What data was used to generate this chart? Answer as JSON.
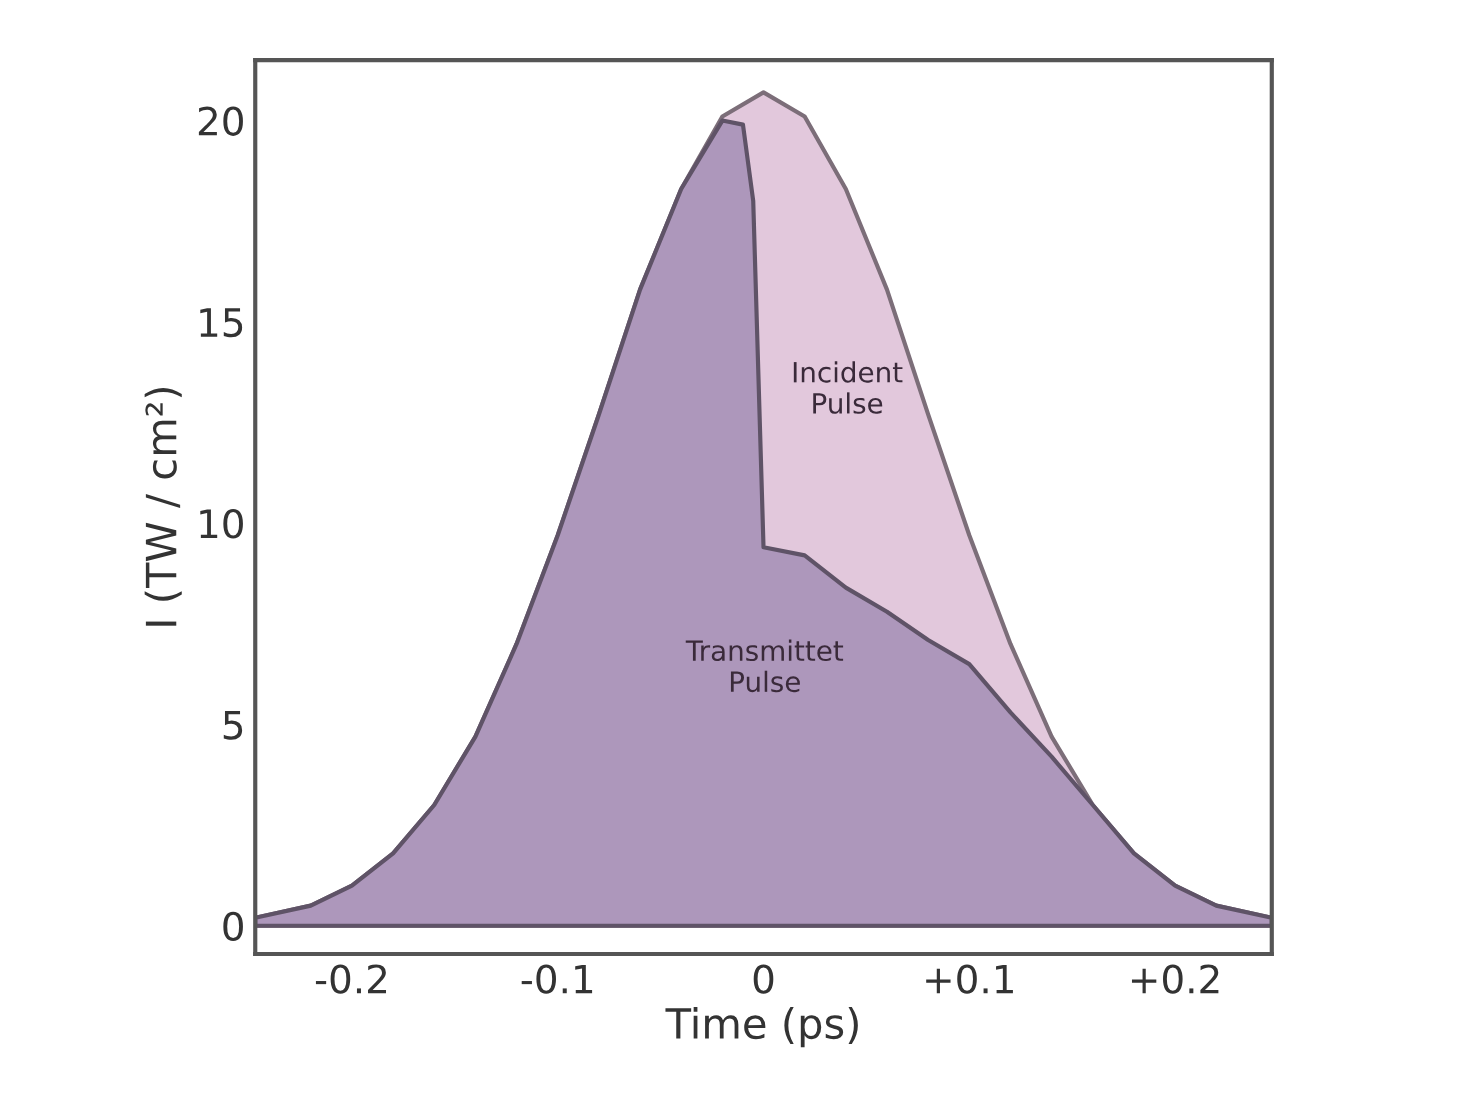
{
  "chart_data": {
    "type": "area",
    "xlabel": "Time (ps)",
    "ylabel": "I (TW / cm²)",
    "xlim": [
      -0.247,
      0.247
    ],
    "ylim": [
      -0.7,
      21.5
    ],
    "xticks": [
      {
        "value": -0.2,
        "label": "-0.2"
      },
      {
        "value": -0.1,
        "label": "-0.1"
      },
      {
        "value": 0,
        "label": "0"
      },
      {
        "value": 0.1,
        "label": "+0.1"
      },
      {
        "value": 0.2,
        "label": "+0.2"
      }
    ],
    "yticks": [
      0,
      5,
      10,
      15,
      20
    ],
    "grid": false,
    "series": [
      {
        "name": "Incident\nPulse",
        "color": "#e2c8dc",
        "x": [
          -0.247,
          -0.22,
          -0.2,
          -0.18,
          -0.16,
          -0.14,
          -0.12,
          -0.1,
          -0.08,
          -0.06,
          -0.04,
          -0.02,
          0,
          0.02,
          0.04,
          0.06,
          0.08,
          0.1,
          0.12,
          0.14,
          0.16,
          0.18,
          0.2,
          0.22,
          0.247
        ],
        "values": [
          0.2,
          0.5,
          1.0,
          1.8,
          3.0,
          4.7,
          7.0,
          9.7,
          12.7,
          15.8,
          18.3,
          20.1,
          20.7,
          20.1,
          18.3,
          15.8,
          12.7,
          9.7,
          7.0,
          4.7,
          3.0,
          1.8,
          1.0,
          0.5,
          0.2
        ]
      },
      {
        "name": "Transmittet\nPulse",
        "color": "#ad97bb",
        "x": [
          -0.247,
          -0.22,
          -0.2,
          -0.18,
          -0.16,
          -0.14,
          -0.12,
          -0.1,
          -0.08,
          -0.06,
          -0.04,
          -0.02,
          -0.01,
          -0.005,
          0,
          0.02,
          0.04,
          0.06,
          0.08,
          0.1,
          0.12,
          0.14,
          0.16,
          0.18,
          0.2,
          0.22,
          0.247
        ],
        "values": [
          0.2,
          0.5,
          1.0,
          1.8,
          3.0,
          4.7,
          7.0,
          9.7,
          12.7,
          15.8,
          18.3,
          20.0,
          19.9,
          18.0,
          9.4,
          9.2,
          8.4,
          7.8,
          7.1,
          6.5,
          5.3,
          4.2,
          3.0,
          1.8,
          1.0,
          0.5,
          0.2
        ]
      }
    ]
  }
}
